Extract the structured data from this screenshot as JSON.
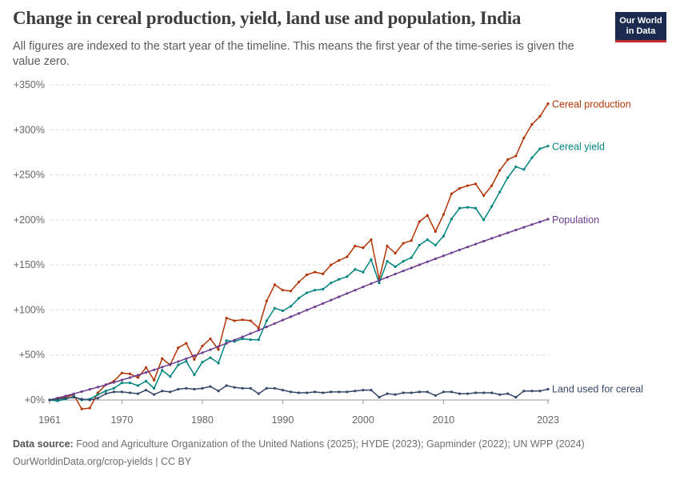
{
  "header": {
    "title": "Change in cereal production, yield, land use and population, India",
    "subtitle": "All figures are indexed to the start year of the timeline. This means the first year of the time-series is given the value zero.",
    "logo_line1": "Our World",
    "logo_line2": "in Data"
  },
  "footer": {
    "source_label": "Data source:",
    "source_text": "Food and Agriculture Organization of the United Nations (2025); HYDE (2023); Gapminder (2022); UN WPP (2024)",
    "url_text": "OurWorldinData.org/crop-yields | CC BY"
  },
  "chart_data": {
    "type": "line",
    "title": "Change in cereal production, yield, land use and population, India",
    "xlabel": "",
    "ylabel": "",
    "xlim": [
      1961,
      2023
    ],
    "ylim": [
      0,
      350
    ],
    "yticks": [
      0,
      50,
      100,
      150,
      200,
      250,
      300,
      350
    ],
    "ytick_labels": [
      "+0%",
      "+50%",
      "+100%",
      "+150%",
      "+200%",
      "+250%",
      "+300%",
      "+350%"
    ],
    "xticks": [
      1961,
      1970,
      1980,
      1990,
      2000,
      2010,
      2023
    ],
    "grid": "horizontal dashed",
    "legend": "inline labels at line ends (right)",
    "x": [
      1961,
      1962,
      1963,
      1964,
      1965,
      1966,
      1967,
      1968,
      1969,
      1970,
      1971,
      1972,
      1973,
      1974,
      1975,
      1976,
      1977,
      1978,
      1979,
      1980,
      1981,
      1982,
      1983,
      1984,
      1985,
      1986,
      1987,
      1988,
      1989,
      1990,
      1991,
      1992,
      1993,
      1994,
      1995,
      1996,
      1997,
      1998,
      1999,
      2000,
      2001,
      2002,
      2003,
      2004,
      2005,
      2006,
      2007,
      2008,
      2009,
      2010,
      2011,
      2012,
      2013,
      2014,
      2015,
      2016,
      2017,
      2018,
      2019,
      2020,
      2021,
      2022,
      2023
    ],
    "series": [
      {
        "name": "Cereal production",
        "color": "#b13507",
        "values": [
          0,
          2,
          3,
          6,
          -10,
          -9,
          8,
          17,
          21,
          30,
          29,
          25,
          36,
          22,
          46,
          39,
          58,
          63,
          45,
          60,
          68,
          56,
          91,
          88,
          89,
          88,
          80,
          110,
          128,
          122,
          121,
          131,
          139,
          142,
          140,
          150,
          155,
          159,
          171,
          169,
          178,
          134,
          171,
          163,
          174,
          177,
          198,
          205,
          187,
          206,
          229,
          235,
          238,
          240,
          227,
          238,
          255,
          267,
          271,
          291,
          306,
          315,
          329
        ]
      },
      {
        "name": "Cereal yield",
        "color": "#00847e",
        "values": [
          0,
          -1,
          1,
          4,
          0,
          1,
          6,
          10,
          13,
          19,
          19,
          16,
          21,
          13,
          33,
          26,
          39,
          43,
          28,
          42,
          47,
          41,
          66,
          65,
          68,
          67,
          67,
          88,
          102,
          99,
          104,
          113,
          119,
          122,
          123,
          130,
          134,
          137,
          145,
          142,
          156,
          130,
          154,
          148,
          154,
          158,
          172,
          178,
          172,
          182,
          201,
          213,
          214,
          213,
          200,
          215,
          231,
          247,
          259,
          256,
          269,
          279,
          282
        ]
      },
      {
        "name": "Population",
        "color": "#6d3e91",
        "values": [
          0,
          2.2,
          4.5,
          6.9,
          9.3,
          11.8,
          14.3,
          16.9,
          19.5,
          22.2,
          24.9,
          27.7,
          30.6,
          33.5,
          36.5,
          39.6,
          42.7,
          45.9,
          49.2,
          52.5,
          55.9,
          59.4,
          62.9,
          66.5,
          70.1,
          73.8,
          77.5,
          81.2,
          84.9,
          88.7,
          92.4,
          96.1,
          99.8,
          103.5,
          107.2,
          110.9,
          114.6,
          118.3,
          121.9,
          125.6,
          129.2,
          132.8,
          136.3,
          139.8,
          143.3,
          146.7,
          150.1,
          153.5,
          156.8,
          160.1,
          163.4,
          166.7,
          169.9,
          173.1,
          176.3,
          179.5,
          182.6,
          185.7,
          188.8,
          191.8,
          194.8,
          197.8,
          200.8
        ]
      },
      {
        "name": "Land used for cereal",
        "color": "#37496b",
        "values": [
          0,
          1,
          2,
          3,
          1,
          0,
          2,
          7,
          9,
          9,
          8,
          7,
          11,
          6,
          10,
          9,
          12,
          13,
          12,
          13,
          15,
          10,
          16,
          14,
          13,
          13,
          7,
          13,
          13,
          11,
          9,
          8,
          8,
          9,
          8,
          9,
          9,
          9,
          10,
          11,
          11,
          3,
          7,
          6,
          8,
          8,
          9,
          9,
          5,
          9,
          9,
          7,
          7,
          8,
          8,
          8,
          6,
          7,
          3,
          10,
          10,
          10,
          12
        ]
      }
    ]
  }
}
